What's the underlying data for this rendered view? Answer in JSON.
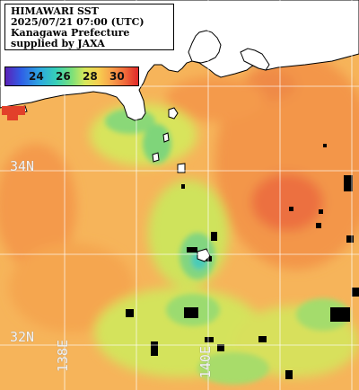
{
  "product": {
    "title": "HIMAWARI SST",
    "datetime": "2025/07/21 07:00 (UTC)",
    "region": "Kanagawa Prefecture",
    "credit": "supplied by JAXA"
  },
  "legend": {
    "ticks": [
      "24",
      "26",
      "28",
      "30"
    ]
  },
  "grid": {
    "lat_labels": [
      "34N",
      "32N"
    ],
    "lon_labels": [
      "138E",
      "140E"
    ]
  },
  "colors": {
    "land": "#ffffff",
    "coastline": "#000000",
    "missing_data": "#000000",
    "gridline": "#ffffff",
    "sst_24": "#2f5fe6",
    "sst_26": "#36cfb8",
    "sst_27": "#b8e66a",
    "sst_28": "#f6cf50",
    "sst_29": "#f8a04a",
    "sst_30": "#e0282a"
  }
}
